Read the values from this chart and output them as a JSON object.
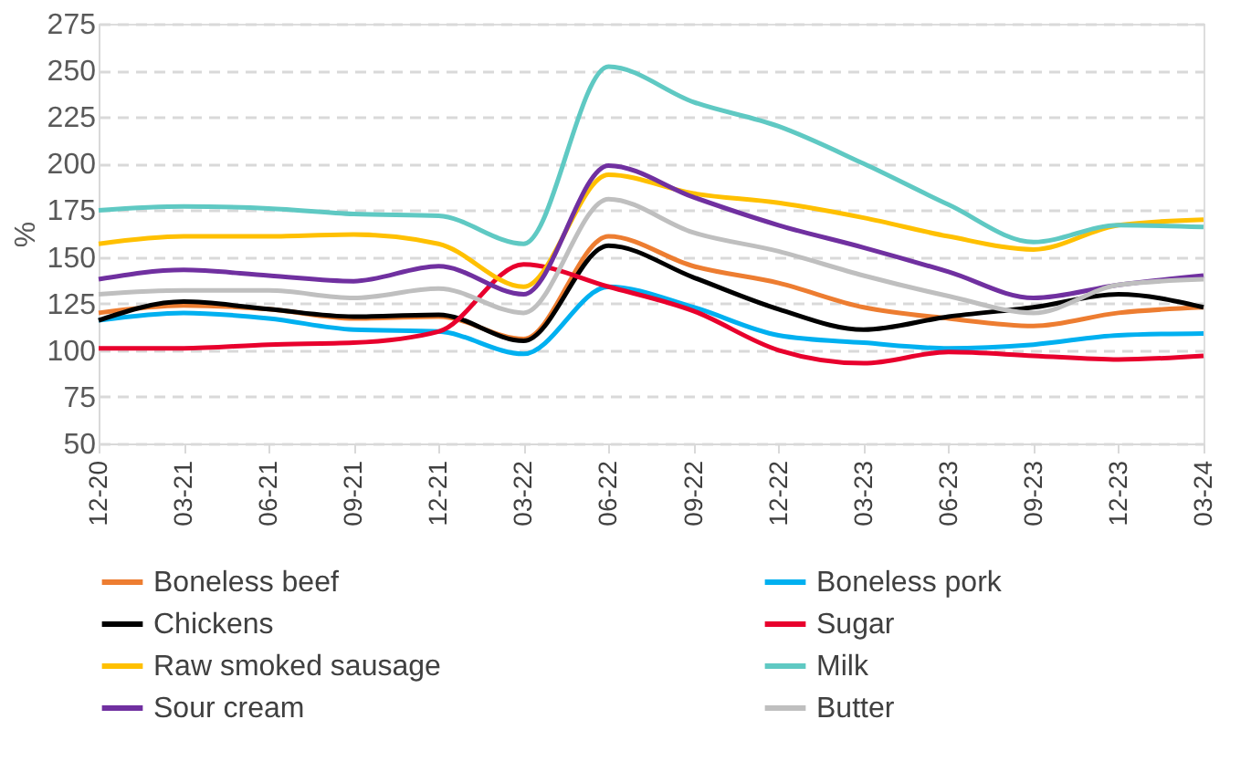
{
  "chart_data": {
    "type": "line",
    "ylabel": "%",
    "categories": [
      "12-20",
      "03-21",
      "06-21",
      "09-21",
      "12-21",
      "03-22",
      "06-22",
      "09-22",
      "12-22",
      "03-23",
      "06-23",
      "09-23",
      "12-23",
      "03-24"
    ],
    "ylim": [
      50,
      275
    ],
    "yticks": [
      50,
      75,
      100,
      125,
      150,
      175,
      200,
      225,
      250,
      275
    ],
    "grid": "y",
    "legend": "bottom",
    "line_style": "solid",
    "series": [
      {
        "name": "Boneless beef",
        "color": "#ed7d31",
        "values": [
          120,
          124,
          122,
          117,
          118,
          106,
          161,
          145,
          136,
          123,
          117,
          113,
          120,
          123
        ]
      },
      {
        "name": "Boneless pork",
        "color": "#00b0f0",
        "values": [
          116,
          120,
          117,
          111,
          110,
          98,
          134,
          123,
          108,
          104,
          101,
          103,
          108,
          109
        ]
      },
      {
        "name": "Chickens",
        "color": "#000000",
        "values": [
          116,
          126,
          122,
          118,
          119,
          105,
          156,
          139,
          122,
          111,
          118,
          123,
          130,
          123
        ]
      },
      {
        "name": "Sugar",
        "color": "#e8002d",
        "values": [
          101,
          101,
          103,
          104,
          110,
          146,
          134,
          121,
          100,
          93,
          99,
          97,
          95,
          97
        ]
      },
      {
        "name": "Raw smoked sausage",
        "color": "#ffc000",
        "values": [
          157,
          161,
          161,
          162,
          157,
          134,
          194,
          184,
          179,
          171,
          161,
          154,
          167,
          170
        ]
      },
      {
        "name": "Milk",
        "color": "#5fc9c3",
        "values": [
          175,
          177,
          176,
          173,
          172,
          157,
          252,
          233,
          220,
          200,
          178,
          158,
          167,
          166
        ]
      },
      {
        "name": "Sour cream",
        "color": "#7030a0",
        "values": [
          138,
          143,
          140,
          137,
          145,
          130,
          199,
          182,
          167,
          155,
          142,
          128,
          135,
          140
        ]
      },
      {
        "name": "Butter",
        "color": "#bfbfbf",
        "values": [
          130,
          132,
          132,
          128,
          133,
          120,
          181,
          163,
          153,
          140,
          129,
          120,
          135,
          138
        ]
      }
    ]
  }
}
